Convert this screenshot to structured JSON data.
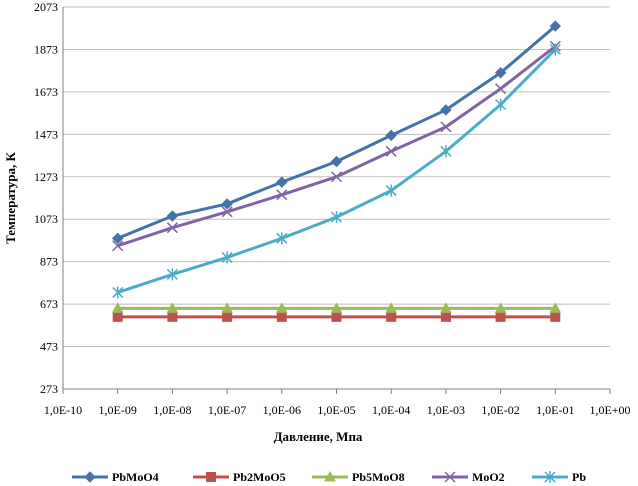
{
  "chart_data": {
    "type": "line",
    "title": "",
    "xlabel": "Давление, Мпа",
    "ylabel": "Температура, К",
    "x_ticks": [
      "1,0E-10",
      "1,0E-09",
      "1,0E-08",
      "1,0E-07",
      "1,0E-06",
      "1,0E-05",
      "1,0E-04",
      "1,0E-03",
      "1,0E-02",
      "1,0E-01",
      "1,0E+00"
    ],
    "x": [
      "1,0E-09",
      "1,0E-08",
      "1,0E-07",
      "1,0E-06",
      "1,0E-05",
      "1,0E-04",
      "1,0E-03",
      "1,0E-02",
      "1,0E-01"
    ],
    "x_scale": "log",
    "y_ticks": [
      273,
      473,
      673,
      873,
      1073,
      1273,
      1473,
      1673,
      1873,
      2073
    ],
    "ylim": [
      273,
      2073
    ],
    "grid": "horizontal",
    "legend_position": "bottom",
    "series": [
      {
        "name": "PbMoO4",
        "color": "#4572a7",
        "marker": "diamond",
        "values": [
          983,
          1088,
          1145,
          1248,
          1345,
          1468,
          1588,
          1763,
          1983
        ]
      },
      {
        "name": "Pb2MoO5",
        "color": "#c0504d",
        "marker": "square",
        "values": [
          613,
          613,
          613,
          613,
          613,
          613,
          613,
          613,
          613
        ]
      },
      {
        "name": "Pb5MoO8",
        "color": "#9bbb59",
        "marker": "triangle",
        "values": [
          653,
          653,
          653,
          653,
          653,
          653,
          653,
          653,
          653
        ]
      },
      {
        "name": "MoO2",
        "color": "#8064a2",
        "marker": "x",
        "values": [
          948,
          1033,
          1108,
          1188,
          1273,
          1393,
          1508,
          1688,
          1888
        ]
      },
      {
        "name": "Pb",
        "color": "#4bacc6",
        "marker": "star",
        "values": [
          728,
          813,
          893,
          983,
          1083,
          1208,
          1393,
          1613,
          1873
        ]
      }
    ]
  }
}
